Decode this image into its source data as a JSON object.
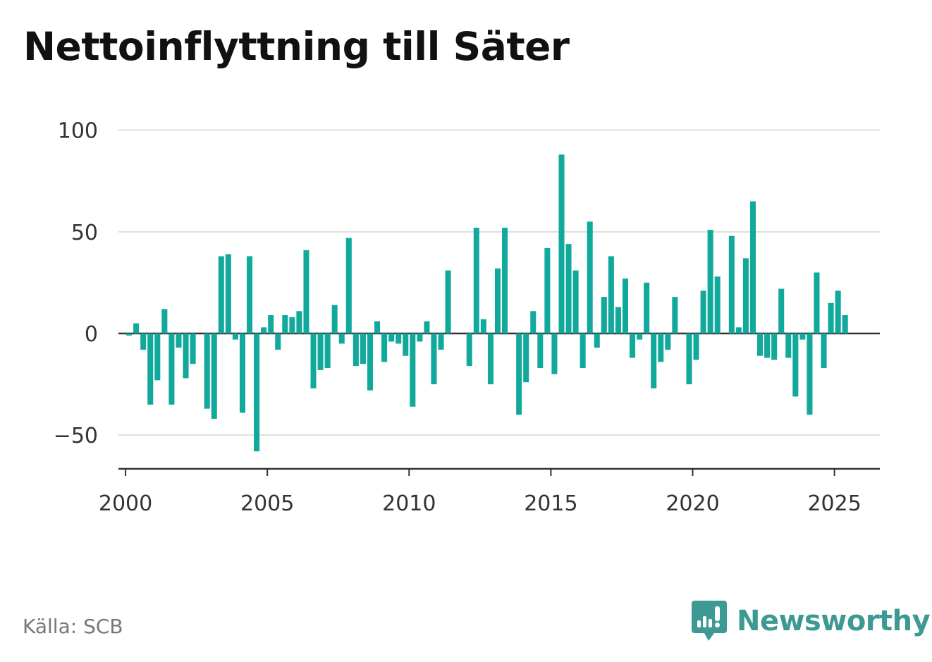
{
  "title": "Nettoinflyttning till Säter",
  "source": "Källa: SCB",
  "brand": {
    "name": "Newsworthy",
    "icon": "newsworthy-logo-icon",
    "color": "#3d9a92"
  },
  "colors": {
    "bar": "#11a99b",
    "grid": "#dddddd",
    "axis": "#333333"
  },
  "chart_data": {
    "type": "bar",
    "title": "Nettoinflyttning till Säter",
    "xlabel": "",
    "ylabel": "",
    "ylim": [
      -67,
      100
    ],
    "xlim": [
      1999.75,
      2026.6
    ],
    "grid": true,
    "legend": "none",
    "yticks": [
      100,
      50,
      0,
      -50
    ],
    "ytick_labels": [
      "100",
      "50",
      "0",
      "−50"
    ],
    "xticks": [
      2000,
      2005,
      2010,
      2015,
      2020,
      2025
    ],
    "xtick_labels": [
      "2000",
      "2005",
      "2010",
      "2015",
      "2020",
      "2025"
    ],
    "series": [
      {
        "values": [
          [
            2000.0,
            -1
          ],
          [
            2000.25,
            5
          ],
          [
            2000.5,
            -8
          ],
          [
            2000.75,
            -35
          ],
          [
            2001.0,
            -23
          ],
          [
            2001.25,
            12
          ],
          [
            2001.5,
            -35
          ],
          [
            2001.75,
            -7
          ],
          [
            2002.0,
            -22
          ],
          [
            2002.25,
            -15
          ],
          [
            2002.75,
            -37
          ],
          [
            2003.0,
            -42
          ],
          [
            2003.25,
            38
          ],
          [
            2003.5,
            39
          ],
          [
            2003.75,
            -3
          ],
          [
            2004.0,
            -39
          ],
          [
            2004.25,
            38
          ],
          [
            2004.5,
            -58
          ],
          [
            2004.75,
            3
          ],
          [
            2005.0,
            9
          ],
          [
            2005.25,
            -8
          ],
          [
            2005.5,
            9
          ],
          [
            2005.75,
            8
          ],
          [
            2006.0,
            11
          ],
          [
            2006.25,
            41
          ],
          [
            2006.5,
            -27
          ],
          [
            2006.75,
            -18
          ],
          [
            2007.0,
            -17
          ],
          [
            2007.25,
            14
          ],
          [
            2007.5,
            -5
          ],
          [
            2007.75,
            47
          ],
          [
            2008.0,
            -16
          ],
          [
            2008.25,
            -15
          ],
          [
            2008.5,
            -28
          ],
          [
            2008.75,
            6
          ],
          [
            2009.0,
            -14
          ],
          [
            2009.25,
            -4
          ],
          [
            2009.5,
            -5
          ],
          [
            2009.75,
            -11
          ],
          [
            2010.0,
            -36
          ],
          [
            2010.25,
            -4
          ],
          [
            2010.5,
            6
          ],
          [
            2010.75,
            -25
          ],
          [
            2011.0,
            -8
          ],
          [
            2011.25,
            31
          ],
          [
            2012.0,
            -16
          ],
          [
            2012.25,
            52
          ],
          [
            2012.5,
            7
          ],
          [
            2012.75,
            -25
          ],
          [
            2013.0,
            32
          ],
          [
            2013.25,
            52
          ],
          [
            2013.75,
            -40
          ],
          [
            2014.0,
            -24
          ],
          [
            2014.25,
            11
          ],
          [
            2014.5,
            -17
          ],
          [
            2014.75,
            42
          ],
          [
            2015.0,
            -20
          ],
          [
            2015.25,
            88
          ],
          [
            2015.5,
            44
          ],
          [
            2015.75,
            31
          ],
          [
            2016.0,
            -17
          ],
          [
            2016.25,
            55
          ],
          [
            2016.5,
            -7
          ],
          [
            2016.75,
            18
          ],
          [
            2017.0,
            38
          ],
          [
            2017.25,
            13
          ],
          [
            2017.5,
            27
          ],
          [
            2017.75,
            -12
          ],
          [
            2018.0,
            -3
          ],
          [
            2018.25,
            25
          ],
          [
            2018.5,
            -27
          ],
          [
            2018.75,
            -14
          ],
          [
            2019.0,
            -8
          ],
          [
            2019.25,
            18
          ],
          [
            2019.75,
            -25
          ],
          [
            2020.0,
            -13
          ],
          [
            2020.25,
            21
          ],
          [
            2020.5,
            51
          ],
          [
            2020.75,
            28
          ],
          [
            2021.25,
            48
          ],
          [
            2021.5,
            3
          ],
          [
            2021.75,
            37
          ],
          [
            2022.0,
            65
          ],
          [
            2022.25,
            -11
          ],
          [
            2022.5,
            -12
          ],
          [
            2022.75,
            -13
          ],
          [
            2023.0,
            22
          ],
          [
            2023.25,
            -12
          ],
          [
            2023.5,
            -31
          ],
          [
            2023.75,
            -3
          ],
          [
            2024.0,
            -40
          ],
          [
            2024.25,
            30
          ],
          [
            2024.5,
            -17
          ],
          [
            2024.75,
            15
          ],
          [
            2025.0,
            21
          ],
          [
            2025.25,
            9
          ]
        ]
      }
    ]
  }
}
